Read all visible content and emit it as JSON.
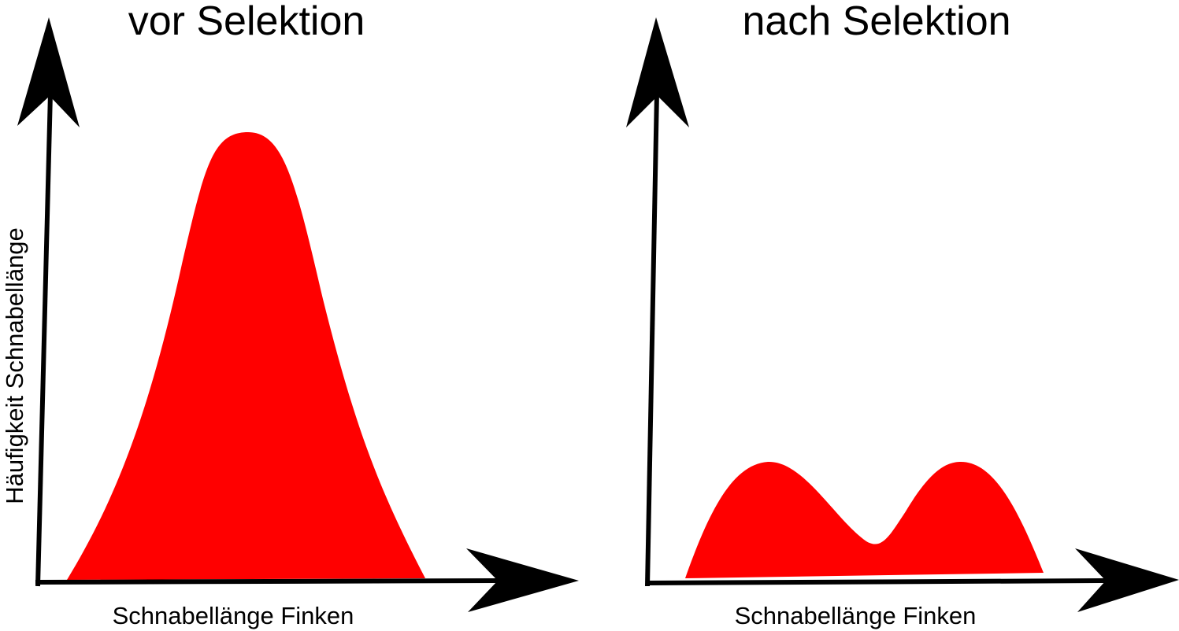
{
  "panels": [
    {
      "title": "vor Selektion",
      "x_label": "Schnabellänge Finken",
      "y_label": "Häufigkeit Schnabellänge"
    },
    {
      "title": "nach Selektion",
      "x_label": "Schnabellänge Finken"
    }
  ]
}
